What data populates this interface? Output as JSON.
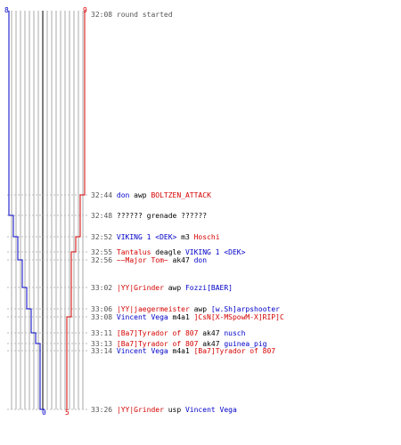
{
  "scores": {
    "blue_start": "8",
    "red_start": "9",
    "blue_end": "0",
    "red_end": "5"
  },
  "colors": {
    "blue": "#0000c8",
    "red": "#d40000",
    "neutral": "#000000",
    "grid": "#aaaaaa",
    "dash": "#bbbbbb"
  },
  "events": [
    {
      "time": "32:08",
      "parts": [
        {
          "text": "round started",
          "c": "gray"
        }
      ]
    },
    {
      "time": "32:44",
      "parts": [
        {
          "text": "don",
          "c": "blue"
        },
        {
          "text": " awp ",
          "c": "black"
        },
        {
          "text": "BOLTZEN_ATTACK",
          "c": "red"
        }
      ]
    },
    {
      "time": "32:48",
      "parts": [
        {
          "text": "??????",
          "c": "black"
        },
        {
          "text": " grenade ",
          "c": "black"
        },
        {
          "text": "??????",
          "c": "black"
        }
      ]
    },
    {
      "time": "32:52",
      "parts": [
        {
          "text": "VIKING 1 <DEK>",
          "c": "blue"
        },
        {
          "text": " m3 ",
          "c": "black"
        },
        {
          "text": "Hoschi",
          "c": "red"
        }
      ]
    },
    {
      "time": "32:55",
      "parts": [
        {
          "text": "Tantalus",
          "c": "red"
        },
        {
          "text": " deagle ",
          "c": "black"
        },
        {
          "text": "VIKING 1 <DEK>",
          "c": "blue"
        }
      ]
    },
    {
      "time": "32:56",
      "parts": [
        {
          "text": "~~Major Tom~",
          "c": "red"
        },
        {
          "text": " ak47 ",
          "c": "black"
        },
        {
          "text": "don",
          "c": "blue"
        }
      ]
    },
    {
      "time": "33:02",
      "parts": [
        {
          "text": "|YY|Grinder",
          "c": "red"
        },
        {
          "text": " awp ",
          "c": "black"
        },
        {
          "text": "Fozzi[BAER]",
          "c": "blue"
        }
      ]
    },
    {
      "time": "33:06",
      "parts": [
        {
          "text": "|YY|jaegermeister",
          "c": "red"
        },
        {
          "text": " awp ",
          "c": "black"
        },
        {
          "text": "[w.Sh]arpshooter",
          "c": "blue"
        }
      ]
    },
    {
      "time": "33:08",
      "parts": [
        {
          "text": "Vincent Vega",
          "c": "blue"
        },
        {
          "text": " m4a1 ",
          "c": "black"
        },
        {
          "text": "]CsN[X-MSpowM-X]RIP]C",
          "c": "red"
        }
      ]
    },
    {
      "time": "33:11",
      "parts": [
        {
          "text": "[Ba7]Tyrador of 807",
          "c": "red"
        },
        {
          "text": " ak47 ",
          "c": "black"
        },
        {
          "text": "nusch",
          "c": "blue"
        }
      ]
    },
    {
      "time": "33:13",
      "parts": [
        {
          "text": "[Ba7]Tyrador of 807",
          "c": "red"
        },
        {
          "text": " ak47 ",
          "c": "black"
        },
        {
          "text": "guinea_pig",
          "c": "blue"
        }
      ]
    },
    {
      "time": "33:14",
      "parts": [
        {
          "text": "Vincent Vega",
          "c": "blue"
        },
        {
          "text": " m4a1 ",
          "c": "black"
        },
        {
          "text": "[Ba7]Tyrador of 807",
          "c": "red"
        }
      ]
    },
    {
      "time": "33:26",
      "parts": [
        {
          "text": "|YY|Grinder",
          "c": "red"
        },
        {
          "text": " usp ",
          "c": "black"
        },
        {
          "text": "Vincent Vega",
          "c": "blue"
        }
      ]
    }
  ]
}
